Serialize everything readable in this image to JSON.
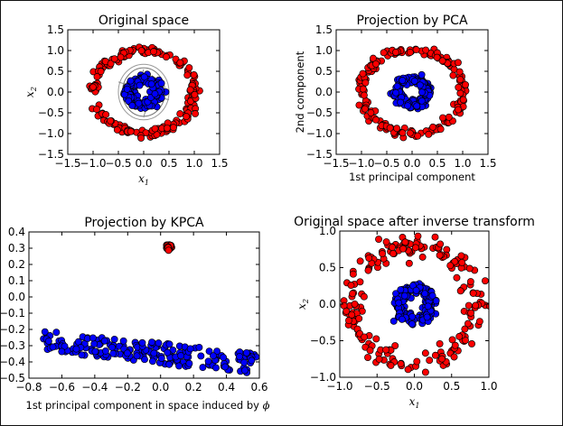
{
  "chart_data": [
    {
      "id": "orig",
      "type": "scatter",
      "title": "Original space",
      "xlabel_sym": "x",
      "xlabel_sub": "1",
      "ylabel_sym": "x",
      "ylabel_sub": "2",
      "xlim": [
        -1.5,
        1.5
      ],
      "ylim": [
        -1.5,
        1.5
      ],
      "xticks": [
        "−1.5",
        "−1.0",
        "−0.5",
        "0.0",
        "0.5",
        "1.0",
        "1.5"
      ],
      "xtick_values": [
        -1.5,
        -1.0,
        -0.5,
        0.0,
        0.5,
        1.0,
        1.5
      ],
      "yticks": [
        "1.5",
        "1.0",
        "0.5",
        "0.0",
        "−0.5",
        "−1.0",
        "−1.5"
      ],
      "ytick_values": [
        1.5,
        1.0,
        0.5,
        0.0,
        -0.5,
        -1.0,
        -1.5
      ],
      "contour_levels": "gray iso-lines around inner cluster",
      "series": [
        {
          "color": "#ff0000",
          "shape": "ring",
          "radius": 1.0,
          "noise": 0.05,
          "count": 200
        },
        {
          "color": "#0000ff",
          "shape": "ring",
          "radius": 0.3,
          "noise": 0.05,
          "count": 200
        }
      ]
    },
    {
      "id": "pca",
      "type": "scatter",
      "title": "Projection by PCA",
      "xlabel": "1st principal component",
      "ylabel": "2nd component",
      "xlim": [
        -1.5,
        1.5
      ],
      "ylim": [
        -1.5,
        1.5
      ],
      "xticks": [
        "−1.5",
        "−1.0",
        "−0.5",
        "0.0",
        "0.5",
        "1.0",
        "1.5"
      ],
      "xtick_values": [
        -1.5,
        -1.0,
        -0.5,
        0.0,
        0.5,
        1.0,
        1.5
      ],
      "yticks": [
        "1.5",
        "1.0",
        "0.5",
        "0.0",
        "−0.5",
        "−1.0",
        "−1.5"
      ],
      "ytick_values": [
        1.5,
        1.0,
        0.5,
        0.0,
        -0.5,
        -1.0,
        -1.5
      ],
      "series": [
        {
          "color": "#ff0000",
          "shape": "ring",
          "radius": 1.0,
          "noise": 0.05,
          "count": 200
        },
        {
          "color": "#0000ff",
          "shape": "ring",
          "radius": 0.3,
          "noise": 0.05,
          "count": 200
        }
      ]
    },
    {
      "id": "kpca",
      "type": "scatter",
      "title": "Projection by KPCA",
      "xlabel": "1st principal component in space induced by ",
      "xlabel_sym": "ϕ",
      "xlim": [
        -0.8,
        0.6
      ],
      "ylim": [
        -0.5,
        0.4
      ],
      "xticks": [
        "−0.8",
        "−0.6",
        "−0.4",
        "−0.2",
        "0.0",
        "0.2",
        "0.4",
        "0.6"
      ],
      "xtick_values": [
        -0.8,
        -0.6,
        -0.4,
        -0.2,
        0.0,
        0.2,
        0.4,
        0.6
      ],
      "yticks": [
        "0.4",
        "0.3",
        "0.2",
        "0.1",
        "0.0",
        "−0.1",
        "−0.2",
        "−0.3",
        "−0.4",
        "−0.5"
      ],
      "ytick_values": [
        0.4,
        0.3,
        0.2,
        0.1,
        0.0,
        -0.1,
        -0.2,
        -0.3,
        -0.4,
        -0.5
      ],
      "series": [
        {
          "color": "#ff0000",
          "shape": "cluster",
          "x": 0.05,
          "y": 0.31,
          "spread": 0.008,
          "count": 60
        },
        {
          "color": "#0000ff",
          "shape": "band",
          "x_range": [
            -0.72,
            0.58
          ],
          "y_top": [
            -0.2,
            -0.35
          ],
          "y_spread": 0.13,
          "count": 200
        }
      ]
    },
    {
      "id": "inv",
      "type": "scatter",
      "title": "Original space after inverse transform",
      "xlabel_sym": "x",
      "xlabel_sub": "1",
      "ylabel_sym": "x",
      "ylabel_sub": "2",
      "xlim": [
        -1.0,
        1.0
      ],
      "ylim": [
        -1.0,
        1.0
      ],
      "xticks": [
        "−1.0",
        "−0.5",
        "0.0",
        "0.5",
        "1.0"
      ],
      "xtick_values": [
        -1.0,
        -0.5,
        0.0,
        0.5,
        1.0
      ],
      "yticks": [
        "1.0",
        "0.5",
        "0.0",
        "−0.5",
        "−1.0"
      ],
      "ytick_values": [
        1.0,
        0.5,
        0.0,
        -0.5,
        -1.0
      ],
      "series": [
        {
          "color": "#ff0000",
          "shape": "ring",
          "radius": 0.82,
          "noise": 0.08,
          "count": 200
        },
        {
          "color": "#0000ff",
          "shape": "ring",
          "radius": 0.22,
          "noise": 0.04,
          "count": 200
        }
      ]
    }
  ]
}
